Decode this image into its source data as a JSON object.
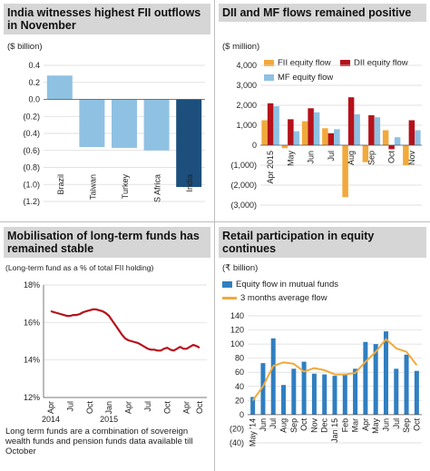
{
  "charts": [
    {
      "title": "India witnesses highest FII outflows in November",
      "unit": "($ billion)",
      "chart_data": {
        "type": "bar",
        "categories": [
          "Brazil",
          "Taiwan",
          "Turkey",
          "S Africa",
          "India"
        ],
        "values": [
          0.28,
          -0.56,
          -0.57,
          -0.6,
          -1.03
        ],
        "colors": [
          "#8fc1e3",
          "#8fc1e3",
          "#8fc1e3",
          "#8fc1e3",
          "#1c4f7c"
        ],
        "ylim": [
          -1.2,
          0.4
        ],
        "yticks": [
          -1.2,
          -1.0,
          -0.8,
          -0.6,
          -0.4,
          -0.2,
          0.0,
          0.2,
          0.4
        ],
        "ytick_labels": [
          "(1.2)",
          "(1.0)",
          "(0.8)",
          "(0.6)",
          "(0.4)",
          "(0.2)",
          "0.0",
          "0.2",
          "0.4"
        ],
        "grid": true
      }
    },
    {
      "title": "DII and MF flows remained positive",
      "unit": "($ million)",
      "chart_data": {
        "type": "bar",
        "categories": [
          "Apr 2015",
          "May",
          "Jun",
          "Jul",
          "Aug",
          "Sep",
          "Oct",
          "Nov"
        ],
        "series": [
          {
            "name": "FII equity flow",
            "color": "#f2a93b",
            "values": [
              1250,
              -150,
              1200,
              850,
              -2600,
              -850,
              750,
              -1000
            ]
          },
          {
            "name": "DII equity flow",
            "color": "#b5121b",
            "values": [
              2100,
              1300,
              1850,
              600,
              2400,
              1500,
              -200,
              1250
            ]
          },
          {
            "name": "MF equity flow",
            "color": "#8fc1e3",
            "values": [
              1950,
              700,
              1650,
              800,
              1550,
              1400,
              400,
              750
            ]
          }
        ],
        "ylim": [
          -3000,
          4000
        ],
        "yticks": [
          -3000,
          -2000,
          -1000,
          0,
          1000,
          2000,
          3000,
          4000
        ],
        "ytick_labels": [
          "(3,000)",
          "(2,000)",
          "(1,000)",
          "0",
          "1,000",
          "2,000",
          "3,000",
          "4,000"
        ],
        "grid": true,
        "legend": "top"
      }
    },
    {
      "title": "Mobilisation of long-term funds has remained stable",
      "unit": "(Long-term fund as a % of total FII holding)",
      "note": "Long term funds are a combination of sovereign wealth funds and pension funds data available till October",
      "chart_data": {
        "type": "line",
        "x": [
          0,
          1,
          2,
          3,
          4,
          5,
          6,
          7,
          8,
          9,
          10,
          11,
          12,
          13,
          14,
          15,
          16,
          17,
          18,
          19,
          20,
          21,
          22,
          23,
          24,
          25,
          26,
          27,
          28,
          29,
          30,
          31,
          32,
          33,
          34,
          35,
          36,
          37,
          38,
          39,
          40,
          41,
          42,
          43,
          44,
          45,
          46
        ],
        "x_tick_positions": [
          0,
          6,
          12,
          18,
          24,
          30,
          36,
          42,
          46
        ],
        "x_tick_labels": [
          "Apr",
          "Jul",
          "Oct",
          "Jan",
          "Apr",
          "Jul",
          "Oct",
          "Apr",
          "Oct"
        ],
        "x_year_labels": [
          "2014",
          "2015"
        ],
        "x_year_positions": [
          0,
          18
        ],
        "series": [
          {
            "color": "#b5121b",
            "values": [
              16.6,
              16.55,
              16.5,
              16.45,
              16.4,
              16.35,
              16.35,
              16.4,
              16.4,
              16.45,
              16.55,
              16.6,
              16.65,
              16.7,
              16.7,
              16.65,
              16.6,
              16.5,
              16.35,
              16.1,
              15.85,
              15.6,
              15.35,
              15.15,
              15.05,
              15.0,
              14.95,
              14.9,
              14.8,
              14.7,
              14.6,
              14.55,
              14.55,
              14.5,
              14.5,
              14.6,
              14.65,
              14.55,
              14.5,
              14.6,
              14.7,
              14.6,
              14.6,
              14.7,
              14.8,
              14.75,
              14.65
            ]
          }
        ],
        "ylim": [
          12,
          18
        ],
        "yticks": [
          12,
          14,
          16,
          18
        ],
        "ytick_labels": [
          "12%",
          "14%",
          "16%",
          "18%"
        ],
        "grid": true
      }
    },
    {
      "title": "Retail participation in equity continues",
      "unit": "(₹ billion)",
      "chart_data": {
        "type": "bar",
        "categories": [
          "May '14",
          "Jun",
          "Jul",
          "Aug",
          "Sep",
          "Oct",
          "Nov",
          "Dec",
          "Jan 15",
          "Feb",
          "Mar",
          "Apr",
          "May",
          "Jun",
          "Jul",
          "Sep",
          "Oct"
        ],
        "series": [
          {
            "name": "Equity flow in mutual funds",
            "color": "#2f7fc1",
            "values": [
              25,
              73,
              108,
              42,
              65,
              75,
              58,
              57,
              55,
              58,
              65,
              103,
              100,
              118,
              65,
              85,
              62
            ]
          },
          {
            "name": "3 months average flow",
            "color": "#f2a93b",
            "type": "line",
            "values": [
              20,
              40,
              69,
              74,
              72,
              61,
              66,
              63,
              57,
              57,
              59,
              75,
              89,
              107,
              94,
              89,
              70
            ]
          }
        ],
        "ylim": [
          -40,
          140
        ],
        "yticks": [
          -40,
          -20,
          0,
          20,
          40,
          60,
          80,
          100,
          120,
          140
        ],
        "ytick_labels": [
          "(40)",
          "(20)",
          "0",
          "20",
          "40",
          "60",
          "80",
          "100",
          "120",
          "140"
        ],
        "grid": true,
        "legend": "top"
      }
    }
  ]
}
